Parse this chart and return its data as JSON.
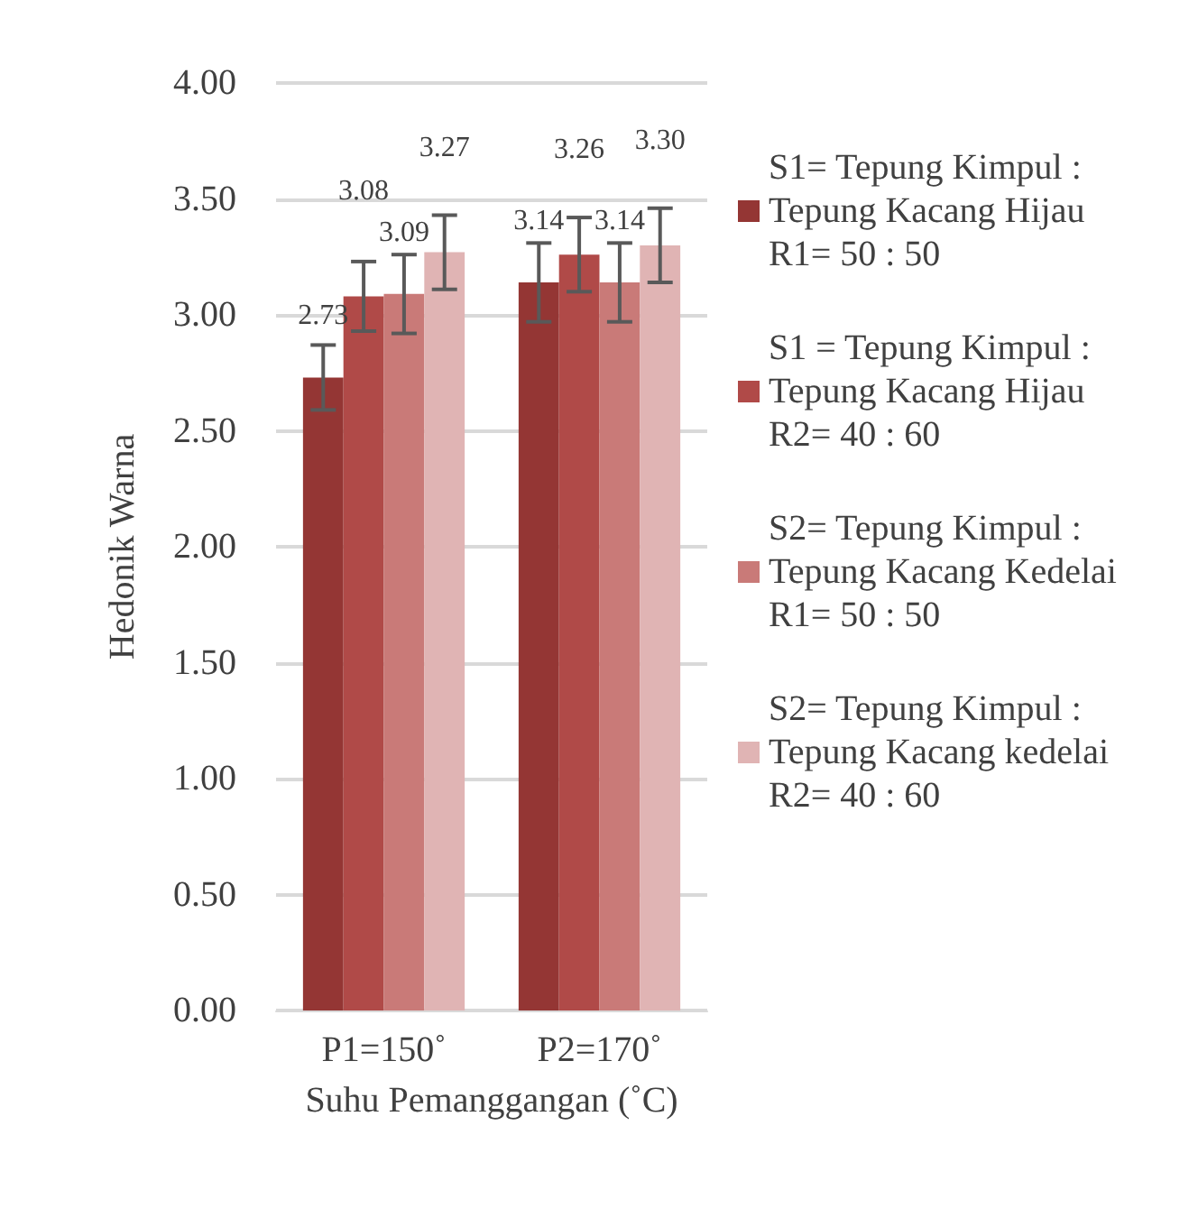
{
  "chart_data": {
    "type": "bar",
    "xlabel": "Suhu Pemanggangan (˚C)",
    "ylabel": "Hedonik Warna",
    "categories": [
      "P1=150˚",
      "P2=170˚"
    ],
    "series": [
      {
        "name": "S1= Tepung Kimpul : Tepung Kacang Hijau R1= 50 : 50",
        "color": "#943634",
        "values": [
          2.73,
          3.14
        ],
        "errors": [
          0.14,
          0.17
        ],
        "value_labels": [
          "2.73",
          "3.14"
        ]
      },
      {
        "name": "S1 = Tepung Kimpul : Tepung Kacang Hijau R2= 40 : 60",
        "color": "#b04a48",
        "values": [
          3.08,
          3.26
        ],
        "errors": [
          0.15,
          0.16
        ],
        "value_labels": [
          "3.08",
          "3.26"
        ]
      },
      {
        "name": "S2= Tepung Kimpul : Tepung Kacang Kedelai R1= 50 : 50",
        "color": "#c97a78",
        "values": [
          3.09,
          3.14
        ],
        "errors": [
          0.17,
          0.17
        ],
        "value_labels": [
          "3.09",
          "3.14"
        ]
      },
      {
        "name": "S2= Tepung Kimpul : Tepung Kacang kedelai R2= 40 : 60",
        "color": "#e0b4b4",
        "values": [
          3.27,
          3.3
        ],
        "errors": [
          0.16,
          0.16
        ],
        "value_labels": [
          "3.27",
          "3.30"
        ]
      }
    ],
    "ylim": [
      0,
      4
    ],
    "yticks": [
      {
        "value": 0,
        "label": "0.00"
      },
      {
        "value": 0.5,
        "label": "0.50"
      },
      {
        "value": 1,
        "label": "1.00"
      },
      {
        "value": 1.5,
        "label": "1.50"
      },
      {
        "value": 2,
        "label": "2.00"
      },
      {
        "value": 2.5,
        "label": "2.50"
      },
      {
        "value": 3,
        "label": "3.00"
      },
      {
        "value": 3.5,
        "label": "3.50"
      },
      {
        "value": 4,
        "label": "4.00"
      }
    ],
    "grid": "y",
    "legend": "right"
  }
}
